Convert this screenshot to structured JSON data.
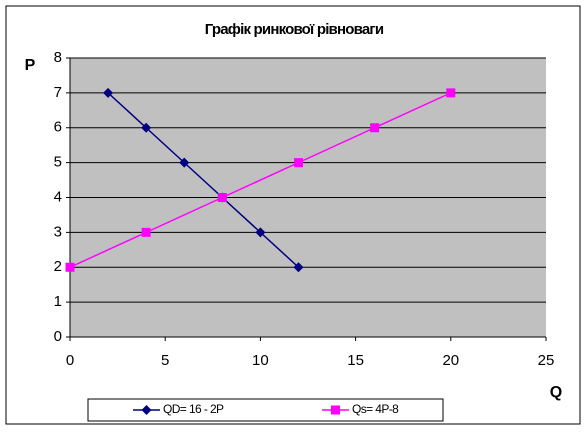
{
  "chart_data": {
    "type": "line",
    "title": "Графік ринкової рівноваги",
    "x_label": "Q",
    "y_label": "P",
    "series": [
      {
        "name": "QD= 16 - 2P",
        "color": "#000080",
        "marker": "diamond",
        "x": [
          2,
          4,
          6,
          8,
          10,
          12
        ],
        "values": [
          7,
          6,
          5,
          4,
          3,
          2
        ]
      },
      {
        "name": "Qs= 4P-8",
        "color": "#ff00ff",
        "marker": "square",
        "x": [
          0,
          4,
          8,
          12,
          16,
          20
        ],
        "values": [
          2,
          3,
          4,
          5,
          6,
          7
        ]
      }
    ],
    "xlim": [
      0,
      25
    ],
    "xticks": [
      0,
      5,
      10,
      15,
      20,
      25
    ],
    "ylim": [
      0,
      8
    ],
    "yticks": [
      0,
      1,
      2,
      3,
      4,
      5,
      6,
      7,
      8
    ],
    "grid": true,
    "legend": "bottom",
    "plot_background": "#c0c0c0"
  }
}
